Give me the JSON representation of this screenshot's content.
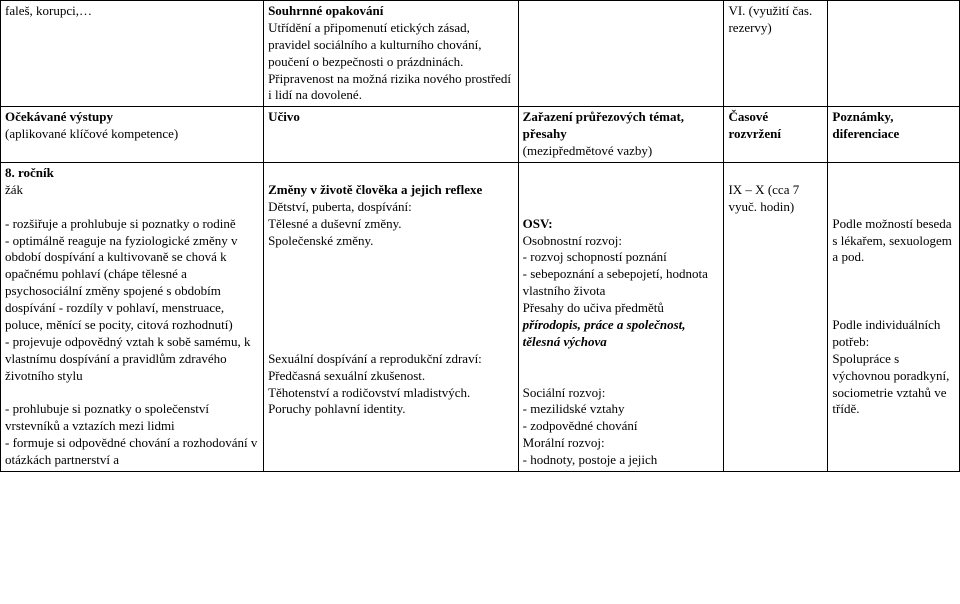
{
  "row1": {
    "c1": "faleš, korupci,…",
    "c2_bold": "Souhrnné opakování",
    "c2_rest": "Utřídění a připomenutí etických zásad, pravidel sociálního a kulturního chování, poučení o bezpečnosti o prázdninách. Připravenost na možná rizika nového prostředí i lidí na dovolené.",
    "c4": "VI. (využití čas. rezervy)"
  },
  "row2": {
    "c1_bold": "Očekávané výstupy",
    "c1_rest": "(aplikované klíčové kompetence)",
    "c2_bold": "Učivo",
    "c3_bold": "Zařazení průřezových témat, přesahy",
    "c3_rest": "(mezipředmětové vazby)",
    "c4_bold": "Časové rozvržení",
    "c5_bold": "Poznámky, diferenciace"
  },
  "row3": {
    "c1_title": "8. ročník",
    "c1_zak": "žák",
    "c1_b1": "- rozšiřuje a prohlubuje si poznatky o rodině",
    "c1_b2": "- optimálně reaguje na fyziologické změny v období dospívání a kultivovaně se chová k opačnému pohlaví (chápe tělesné a psychosociální změny spojené s obdobím dospívání - rozdíly v pohlaví, menstruace, poluce, měnící se pocity, citová rozhodnutí)",
    "c1_b3": "- projevuje odpovědný vztah k sobě samému, k vlastnímu dospívání a pravidlům zdravého životního stylu",
    "c1_b4": "- prohlubuje si poznatky o společenství vrstevníků a vztazích mezi lidmi",
    "c1_b5": "- formuje si odpovědné chování a rozhodování v otázkách partnerství a",
    "c2_h1": "Změny v životě člověka a jejich reflexe",
    "c2_l1": "Dětství, puberta, dospívání:",
    "c2_l2": "Tělesné a duševní změny.",
    "c2_l3": "Společenské změny.",
    "c2_l4": "Sexuální dospívání a reprodukční zdraví:",
    "c2_l5": "Předčasná sexuální zkušenost.",
    "c2_l6": "Těhotenství a rodičovství mladistvých.",
    "c2_l7": "Poruchy pohlavní identity.",
    "c3_h1": "OSV:",
    "c3_or": "Osobnostní rozvoj:",
    "c3_o1": "- rozvoj schopností poznání",
    "c3_o2": "- sebepoznání a sebepojetí, hodnota vlastního života",
    "c3_p1": "Přesahy do učiva předmětů",
    "c3_p2": "přírodopis, práce a společnost, tělesná výchova",
    "c3_sr": "Sociální rozvoj:",
    "c3_s1": "- mezilidské vztahy",
    "c3_s2": "- zodpovědné chování",
    "c3_mr": "Morální rozvoj:",
    "c3_m1": "- hodnoty, postoje a jejich",
    "c4_l1": "IX – X (cca 7 vyuč. hodin)",
    "c5_l1": "Podle možností beseda s lékařem, sexuologem a pod.",
    "c5_l2": "Podle individuálních potřeb:",
    "c5_l3": "Spolupráce s výchovnou poradkyní, sociometrie vztahů ve třídě."
  }
}
